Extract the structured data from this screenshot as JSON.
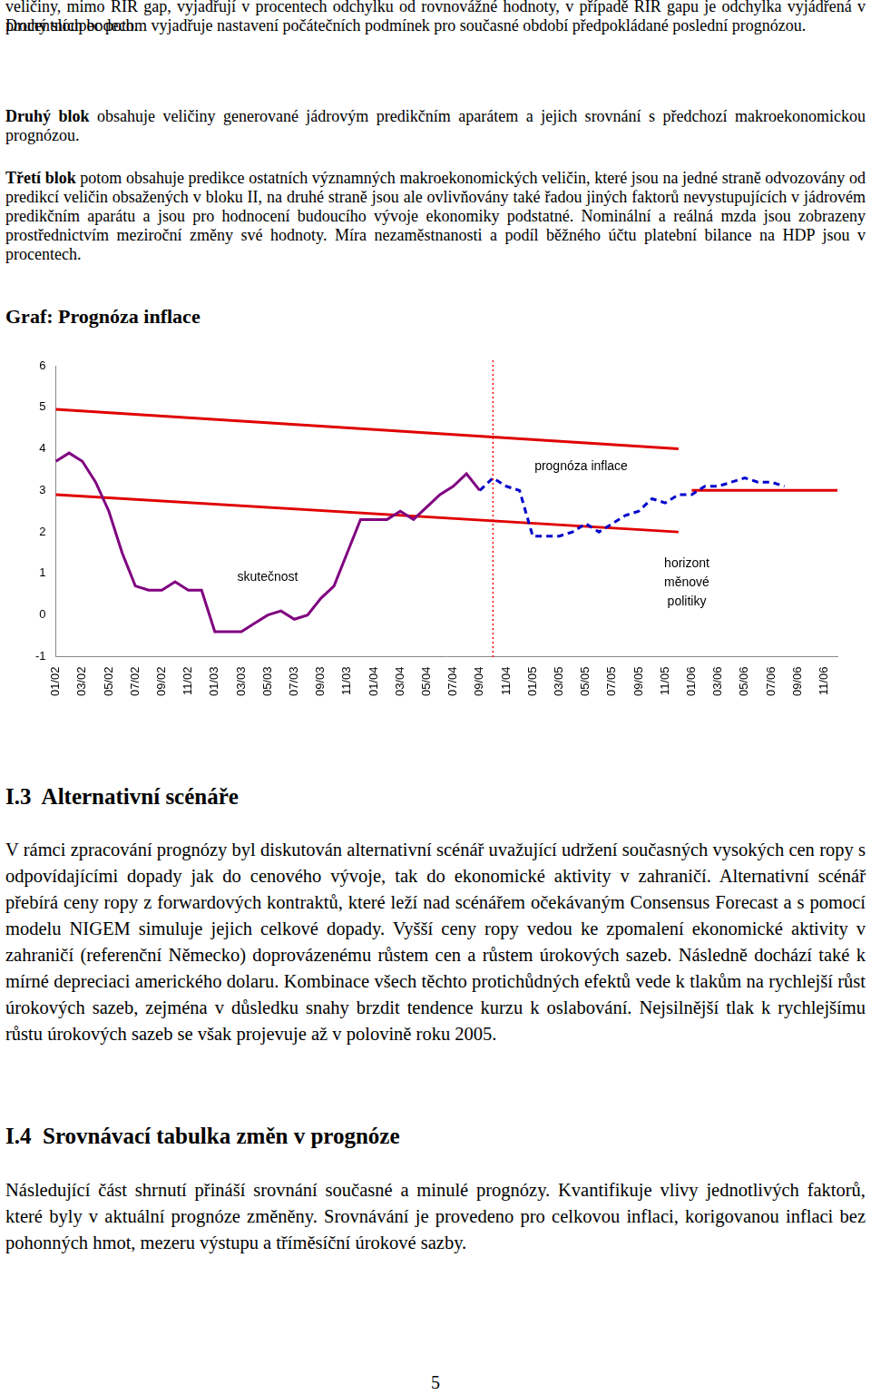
{
  "document": {
    "intro_paragraphs": [
      {
        "text": "veličiny, mimo RIR gap, vyjadřují v procentech odchylku od rovnovážné hodnoty, v případě RIR gapu je odchylka vyjádřená v procentních bodech."
      },
      {
        "text": "Druhý sloupec potom vyjadřuje nastavení počátečních podmínek pro současné období předpokládané poslední prognózou."
      },
      {
        "bold": "Druhý blok",
        "text": " obsahuje veličiny generované jádrovým predikčním aparátem a jejich srovnání s předchozí makroekonomickou prognózou."
      },
      {
        "bold": "Třetí blok",
        "text": " potom obsahuje predikce ostatních významných makroekonomických veličin, které jsou na jedné straně odvozovány od predikcí veličin obsažených v bloku II, na druhé straně jsou ale ovlivňovány také řadou jiných faktorů nevystupujících v jádrovém predikčním aparátu a jsou pro hodnocení budoucího vývoje ekonomiky podstatné. Nominální a reálná mzda jsou zobrazeny prostřednictvím meziroční změny své hodnoty. Míra nezaměstnanosti a podíl běžného účtu platební bilance na HDP jsou v procentech."
      }
    ],
    "chart_heading": "Graf: Prognóza inflace",
    "sections": [
      {
        "heading": "I.3  Alternativní scénáře",
        "text": "V rámci zpracování prognózy byl diskutován alternativní scénář uvažující udržení současných vysokých cen ropy s odpovídajícími dopady jak do cenového vývoje, tak do ekonomické aktivity v zahraničí. Alternativní scénář přebírá ceny ropy z forwardových kontraktů, které leží nad scénářem očekávaným Consensus Forecast a s pomocí modelu NIGEM simuluje jejich celkové dopady. Vyšší ceny ropy vedou ke zpomalení ekonomické aktivity v zahraničí (referenční Německo) doprovázenému růstem cen a růstem úrokových sazeb. Následně dochází také k mírné depreciaci amerického dolaru. Kombinace všech těchto protichůdných efektů vede k tlakům na rychlejší růst úrokových sazeb, zejména v důsledku snahy brzdit tendence kurzu k oslabování. Nejsilnější tlak k rychlejšímu růstu úrokových sazeb se však projevuje až v polovině roku 2005."
      },
      {
        "heading": "I.4  Srovnávací tabulka změn v prognóze",
        "text": "Následující část shrnutí přináší srovnání současné a minulé prognózy. Kvantifikuje vlivy jednotlivých faktorů, které byly v aktuální prognóze změněny. Srovnávání je provedeno pro celkovou inflaci, korigovanou inflaci bez pohonných hmot, mezeru výstupu a tříměsíční úrokové sazby."
      }
    ],
    "page_number": "5"
  },
  "chart_data": {
    "type": "line",
    "categories": [
      "01/02",
      null,
      "03/02",
      null,
      "05/02",
      null,
      "07/02",
      null,
      "09/02",
      null,
      "11/02",
      null,
      "01/03",
      null,
      "03/03",
      null,
      "05/03",
      null,
      "07/03",
      null,
      "09/03",
      null,
      "11/03",
      null,
      "01/04",
      null,
      "03/04",
      null,
      "05/04",
      null,
      "07/04",
      null,
      "09/04",
      null,
      "11/04",
      null,
      "01/05",
      null,
      "03/05",
      null,
      "05/05",
      null,
      "07/05",
      null,
      "09/05",
      null,
      "11/05",
      null,
      "01/06",
      null,
      "03/06",
      null,
      "05/06",
      null,
      "07/06",
      null,
      "09/06",
      null,
      "11/06",
      null
    ],
    "series": [
      {
        "color": "#800080",
        "line_style": "solid",
        "values": [
          3.7,
          3.9,
          3.7,
          3.2,
          2.5,
          1.5,
          0.7,
          0.6,
          0.6,
          0.8,
          0.6,
          0.6,
          -0.4,
          -0.4,
          -0.4,
          -0.2,
          0.0,
          0.1,
          -0.1,
          0.0,
          0.4,
          0.7,
          1.5,
          2.3,
          2.3,
          2.3,
          2.5,
          2.3,
          2.6,
          2.9,
          3.1,
          3.4,
          3.0,
          null,
          null,
          null,
          null,
          null,
          null,
          null,
          null,
          null,
          null,
          null,
          null,
          null,
          null,
          null,
          null,
          null,
          null,
          null,
          null,
          null,
          null,
          null,
          null,
          null,
          null,
          null
        ]
      },
      {
        "color": "#0000cc",
        "line_style": "dashed",
        "values": [
          null,
          null,
          null,
          null,
          null,
          null,
          null,
          null,
          null,
          null,
          null,
          null,
          null,
          null,
          null,
          null,
          null,
          null,
          null,
          null,
          null,
          null,
          null,
          null,
          null,
          null,
          null,
          null,
          null,
          null,
          null,
          null,
          3.0,
          3.3,
          3.1,
          3.0,
          1.9,
          1.9,
          1.9,
          2.0,
          2.2,
          2.0,
          2.2,
          2.4,
          2.5,
          2.8,
          2.7,
          2.9,
          2.9,
          3.1,
          3.1,
          3.2,
          3.3,
          3.2,
          3.2,
          3.1,
          null,
          null,
          null,
          null
        ]
      },
      {
        "color": "#e00000",
        "line_style": "solid",
        "values": [
          4.95,
          null,
          null,
          null,
          null,
          null,
          null,
          null,
          null,
          null,
          null,
          null,
          null,
          null,
          null,
          null,
          null,
          null,
          null,
          null,
          null,
          null,
          null,
          null,
          null,
          null,
          null,
          null,
          null,
          null,
          null,
          null,
          null,
          null,
          null,
          null,
          null,
          null,
          null,
          null,
          null,
          null,
          null,
          null,
          null,
          null,
          null,
          4.0,
          null,
          null,
          null,
          null,
          null,
          null,
          null,
          null,
          null,
          null,
          null,
          null
        ]
      },
      {
        "color": "#e00000",
        "line_style": "solid",
        "values": [
          2.9,
          null,
          null,
          null,
          null,
          null,
          null,
          null,
          null,
          null,
          null,
          null,
          null,
          null,
          null,
          null,
          null,
          null,
          null,
          null,
          null,
          null,
          null,
          null,
          null,
          null,
          null,
          null,
          null,
          null,
          null,
          null,
          null,
          null,
          null,
          null,
          null,
          null,
          null,
          null,
          null,
          null,
          null,
          null,
          null,
          null,
          null,
          2.0,
          null,
          null,
          null,
          null,
          null,
          null,
          null,
          null,
          null,
          null,
          null,
          null
        ]
      },
      {
        "color": "#e00000",
        "line_style": "solid",
        "values": [
          null,
          null,
          null,
          null,
          null,
          null,
          null,
          null,
          null,
          null,
          null,
          null,
          null,
          null,
          null,
          null,
          null,
          null,
          null,
          null,
          null,
          null,
          null,
          null,
          null,
          null,
          null,
          null,
          null,
          null,
          null,
          null,
          null,
          null,
          null,
          null,
          null,
          null,
          null,
          null,
          null,
          null,
          null,
          null,
          null,
          null,
          null,
          null,
          3.0,
          3.0,
          3.0,
          3.0,
          3.0,
          3.0,
          3.0,
          3.0,
          3.0,
          3.0,
          3.0,
          3.0
        ]
      }
    ],
    "vline": {
      "at_index": 33,
      "color": "#ff0000",
      "line_style": "dotted"
    },
    "annotations": [
      "prognóza inflace",
      "skutečnost",
      "horizont měnové politiky"
    ],
    "ylim": [
      -1,
      6
    ],
    "yticks": [
      -1,
      0,
      1,
      2,
      3,
      4,
      5,
      6
    ],
    "grid": false
  }
}
